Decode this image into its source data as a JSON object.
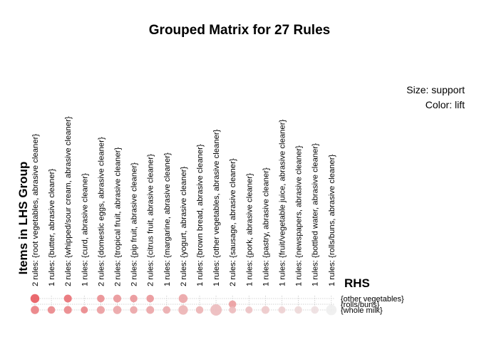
{
  "chart_data": {
    "type": "scatter",
    "title": "Grouped Matrix for 27 Rules",
    "legend": {
      "size_label": "Size: support",
      "color_label": "Color: lift",
      "placement": "top-right"
    },
    "xlabel": "Items in LHS Group",
    "ylabel": "RHS",
    "lhs_groups": [
      "2 rules: {root vegetables, abrasive cleaner}",
      "1 rules: {butter, abrasive cleaner}",
      "2 rules: {whipped/sour cream, abrasive cleaner}",
      "1 rules: {curd, abrasive cleaner}",
      "2 rules: {domestic eggs, abrasive cleaner}",
      "2 rules: {tropical fruit, abrasive cleaner}",
      "2 rules: {pip fruit, abrasive cleaner}",
      "2 rules: {citrus fruit, abrasive cleaner}",
      "1 rules: {margarine, abrasive cleaner}",
      "2 rules: {yogurt, abrasive cleaner}",
      "1 rules: {brown bread, abrasive cleaner}",
      "1 rules: {other vegetables, abrasive cleaner}",
      "2 rules: {sausage, abrasive cleaner}",
      "1 rules: {pork, abrasive cleaner}",
      "1 rules: {pastry, abrasive cleaner}",
      "1 rules: {fruit/vegetable juice, abrasive cleaner}",
      "1 rules: {newspapers, abrasive cleaner}",
      "1 rules: {bottled water, abrasive cleaner}",
      "1 rules: {rolls/buns, abrasive cleaner}"
    ],
    "rhs_items": [
      "{other vegetables}",
      "{rolls/buns}",
      "{whole milk}"
    ],
    "points": [
      {
        "lhs": 0,
        "rhs": 0,
        "support": 0.5,
        "lift": 1.0
      },
      {
        "lhs": 0,
        "rhs": 2,
        "support": 0.4,
        "lift": 0.75
      },
      {
        "lhs": 1,
        "rhs": 2,
        "support": 0.3,
        "lift": 0.7
      },
      {
        "lhs": 2,
        "rhs": 0,
        "support": 0.35,
        "lift": 0.85
      },
      {
        "lhs": 2,
        "rhs": 2,
        "support": 0.35,
        "lift": 0.7
      },
      {
        "lhs": 3,
        "rhs": 2,
        "support": 0.25,
        "lift": 0.7
      },
      {
        "lhs": 4,
        "rhs": 0,
        "support": 0.3,
        "lift": 0.65
      },
      {
        "lhs": 4,
        "rhs": 2,
        "support": 0.35,
        "lift": 0.55
      },
      {
        "lhs": 5,
        "rhs": 0,
        "support": 0.35,
        "lift": 0.6
      },
      {
        "lhs": 5,
        "rhs": 2,
        "support": 0.4,
        "lift": 0.5
      },
      {
        "lhs": 6,
        "rhs": 0,
        "support": 0.3,
        "lift": 0.6
      },
      {
        "lhs": 6,
        "rhs": 2,
        "support": 0.3,
        "lift": 0.5
      },
      {
        "lhs": 7,
        "rhs": 0,
        "support": 0.3,
        "lift": 0.6
      },
      {
        "lhs": 7,
        "rhs": 2,
        "support": 0.35,
        "lift": 0.5
      },
      {
        "lhs": 8,
        "rhs": 2,
        "support": 0.3,
        "lift": 0.45
      },
      {
        "lhs": 9,
        "rhs": 0,
        "support": 0.5,
        "lift": 0.5
      },
      {
        "lhs": 9,
        "rhs": 2,
        "support": 0.6,
        "lift": 0.4
      },
      {
        "lhs": 10,
        "rhs": 2,
        "support": 0.3,
        "lift": 0.4
      },
      {
        "lhs": 11,
        "rhs": 2,
        "support": 1.0,
        "lift": 0.35
      },
      {
        "lhs": 12,
        "rhs": 1,
        "support": 0.3,
        "lift": 0.55
      },
      {
        "lhs": 12,
        "rhs": 2,
        "support": 0.25,
        "lift": 0.35
      },
      {
        "lhs": 13,
        "rhs": 2,
        "support": 0.25,
        "lift": 0.3
      },
      {
        "lhs": 14,
        "rhs": 2,
        "support": 0.35,
        "lift": 0.25
      },
      {
        "lhs": 15,
        "rhs": 2,
        "support": 0.25,
        "lift": 0.2
      },
      {
        "lhs": 16,
        "rhs": 2,
        "support": 0.3,
        "lift": 0.15
      },
      {
        "lhs": 17,
        "rhs": 2,
        "support": 0.3,
        "lift": 0.1
      },
      {
        "lhs": 18,
        "rhs": 2,
        "support": 0.8,
        "lift": 0.0
      }
    ],
    "grid": true,
    "colors": {
      "high_lift": "#e8595e",
      "low_lift": "#eeeeee",
      "grid": "#c8c8c8"
    }
  }
}
